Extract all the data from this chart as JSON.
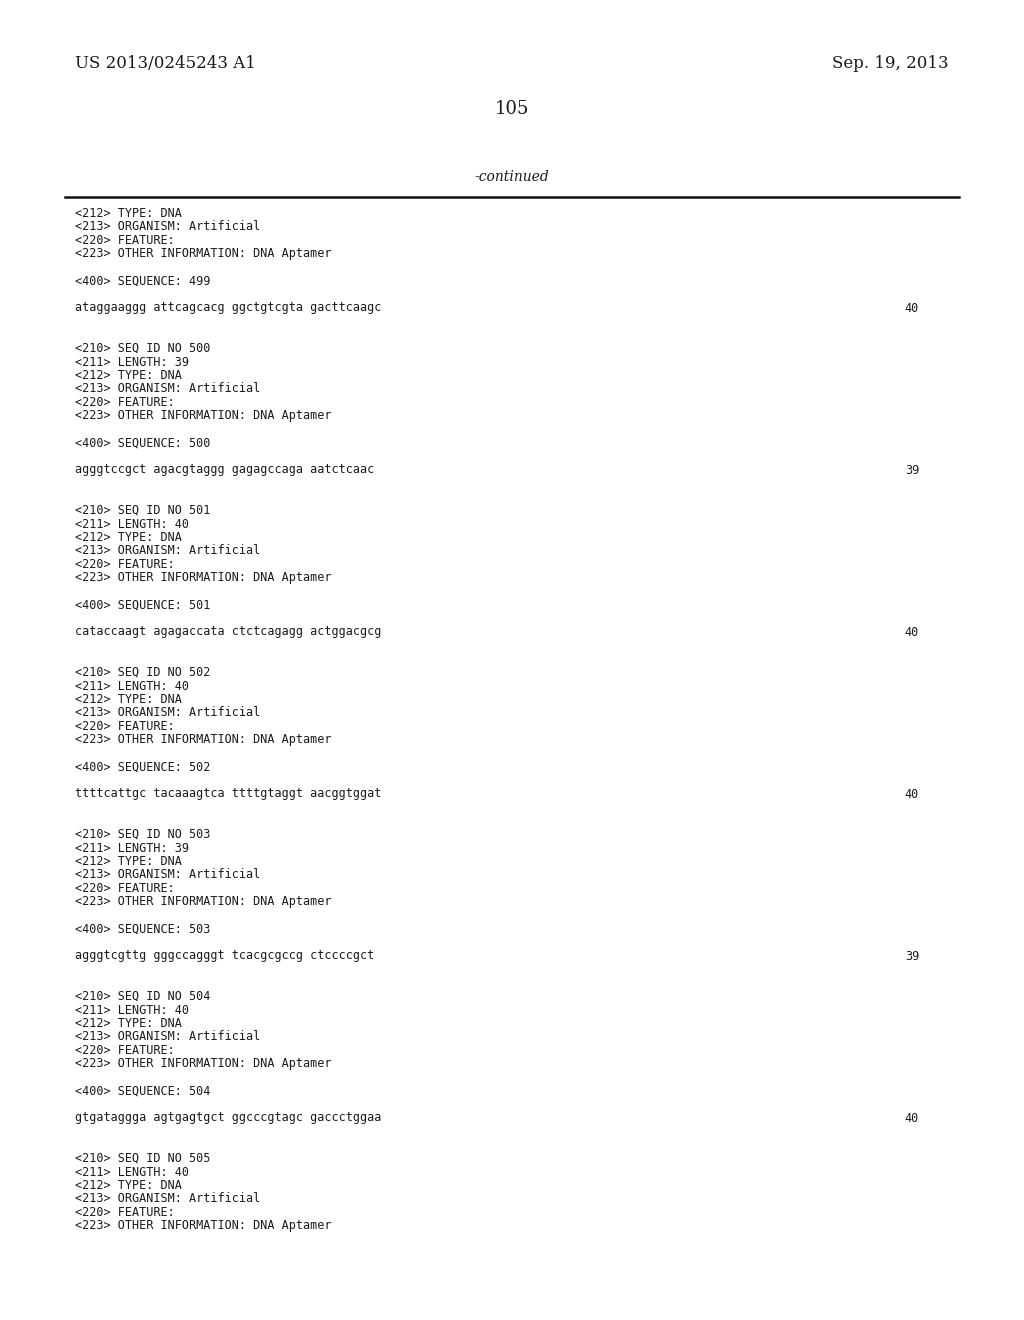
{
  "background_color": "#ffffff",
  "header_left": "US 2013/0245243 A1",
  "header_right": "Sep. 19, 2013",
  "page_number": "105",
  "continued_label": "-continued",
  "header_font_size": 12,
  "page_num_font_size": 13,
  "continued_font_size": 10,
  "body_font_size": 8.5,
  "content_blocks": [
    {
      "lines": [
        "<212> TYPE: DNA",
        "<213> ORGANISM: Artificial",
        "<220> FEATURE:",
        "<223> OTHER INFORMATION: DNA Aptamer"
      ],
      "type": "meta"
    },
    {
      "lines": [
        "<400> SEQUENCE: 499"
      ],
      "type": "seq_header"
    },
    {
      "lines": [
        "ataggaaggg attcagcacg ggctgtcgta gacttcaagc"
      ],
      "count": "40",
      "type": "sequence"
    },
    {
      "lines": [
        "<210> SEQ ID NO 500",
        "<211> LENGTH: 39",
        "<212> TYPE: DNA",
        "<213> ORGANISM: Artificial",
        "<220> FEATURE:",
        "<223> OTHER INFORMATION: DNA Aptamer"
      ],
      "type": "meta"
    },
    {
      "lines": [
        "<400> SEQUENCE: 500"
      ],
      "type": "seq_header"
    },
    {
      "lines": [
        "agggtccgct agacgtaggg gagagccaga aatctcaac"
      ],
      "count": "39",
      "type": "sequence"
    },
    {
      "lines": [
        "<210> SEQ ID NO 501",
        "<211> LENGTH: 40",
        "<212> TYPE: DNA",
        "<213> ORGANISM: Artificial",
        "<220> FEATURE:",
        "<223> OTHER INFORMATION: DNA Aptamer"
      ],
      "type": "meta"
    },
    {
      "lines": [
        "<400> SEQUENCE: 501"
      ],
      "type": "seq_header"
    },
    {
      "lines": [
        "cataccaagt agagaccata ctctcagagg actggacgcg"
      ],
      "count": "40",
      "type": "sequence"
    },
    {
      "lines": [
        "<210> SEQ ID NO 502",
        "<211> LENGTH: 40",
        "<212> TYPE: DNA",
        "<213> ORGANISM: Artificial",
        "<220> FEATURE:",
        "<223> OTHER INFORMATION: DNA Aptamer"
      ],
      "type": "meta"
    },
    {
      "lines": [
        "<400> SEQUENCE: 502"
      ],
      "type": "seq_header"
    },
    {
      "lines": [
        "ttttcattgc tacaaagtca ttttgtaggt aacggtggat"
      ],
      "count": "40",
      "type": "sequence"
    },
    {
      "lines": [
        "<210> SEQ ID NO 503",
        "<211> LENGTH: 39",
        "<212> TYPE: DNA",
        "<213> ORGANISM: Artificial",
        "<220> FEATURE:",
        "<223> OTHER INFORMATION: DNA Aptamer"
      ],
      "type": "meta"
    },
    {
      "lines": [
        "<400> SEQUENCE: 503"
      ],
      "type": "seq_header"
    },
    {
      "lines": [
        "agggtcgttg gggccagggt tcacgcgccg ctccccgct"
      ],
      "count": "39",
      "type": "sequence"
    },
    {
      "lines": [
        "<210> SEQ ID NO 504",
        "<211> LENGTH: 40",
        "<212> TYPE: DNA",
        "<213> ORGANISM: Artificial",
        "<220> FEATURE:",
        "<223> OTHER INFORMATION: DNA Aptamer"
      ],
      "type": "meta"
    },
    {
      "lines": [
        "<400> SEQUENCE: 504"
      ],
      "type": "seq_header"
    },
    {
      "lines": [
        "gtgataggga agtgagtgct ggcccgtagc gaccctggaa"
      ],
      "count": "40",
      "type": "sequence"
    },
    {
      "lines": [
        "<210> SEQ ID NO 505",
        "<211> LENGTH: 40",
        "<212> TYPE: DNA",
        "<213> ORGANISM: Artificial",
        "<220> FEATURE:",
        "<223> OTHER INFORMATION: DNA Aptamer"
      ],
      "type": "meta"
    }
  ]
}
